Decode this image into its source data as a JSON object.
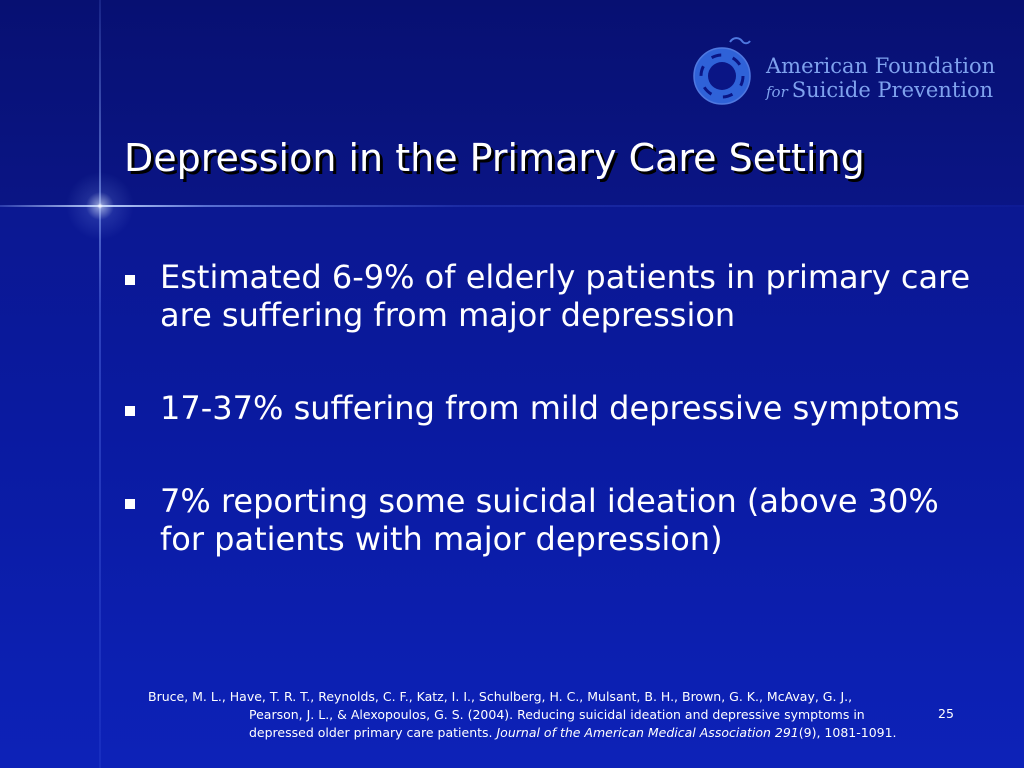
{
  "logo": {
    "line1": "American Foundation",
    "for_word": "for",
    "line2": "Suicide Prevention",
    "color": "#7fa2ee"
  },
  "title": "Depression in the Primary Care Setting",
  "bullets": [
    "Estimated 6-9% of elderly patients in primary care are suffering from major depression",
    "17-37% suffering from mild depressive symptoms",
    "7% reporting some suicidal ideation (above 30% for patients with major depression)"
  ],
  "reference": {
    "line1": "Bruce, M. L., Have, T. R. T., Reynolds, C. F., Katz, I. I., Schulberg, H. C., Mulsant, B. H., Brown, G. K., McAvay, G. J.,",
    "line2": "Pearson, J. L., & Alexopoulos, G. S. (2004). Reducing suicidal ideation and depressive symptoms in",
    "line3_a": "depressed older primary care patients. ",
    "journal": "Journal of the American Medical Association 291",
    "line3_b": "(9), 1081-1091."
  },
  "page_number": "25",
  "colors": {
    "background": "#0a1aa0",
    "title_band": "#071072",
    "text": "#ffffff"
  }
}
